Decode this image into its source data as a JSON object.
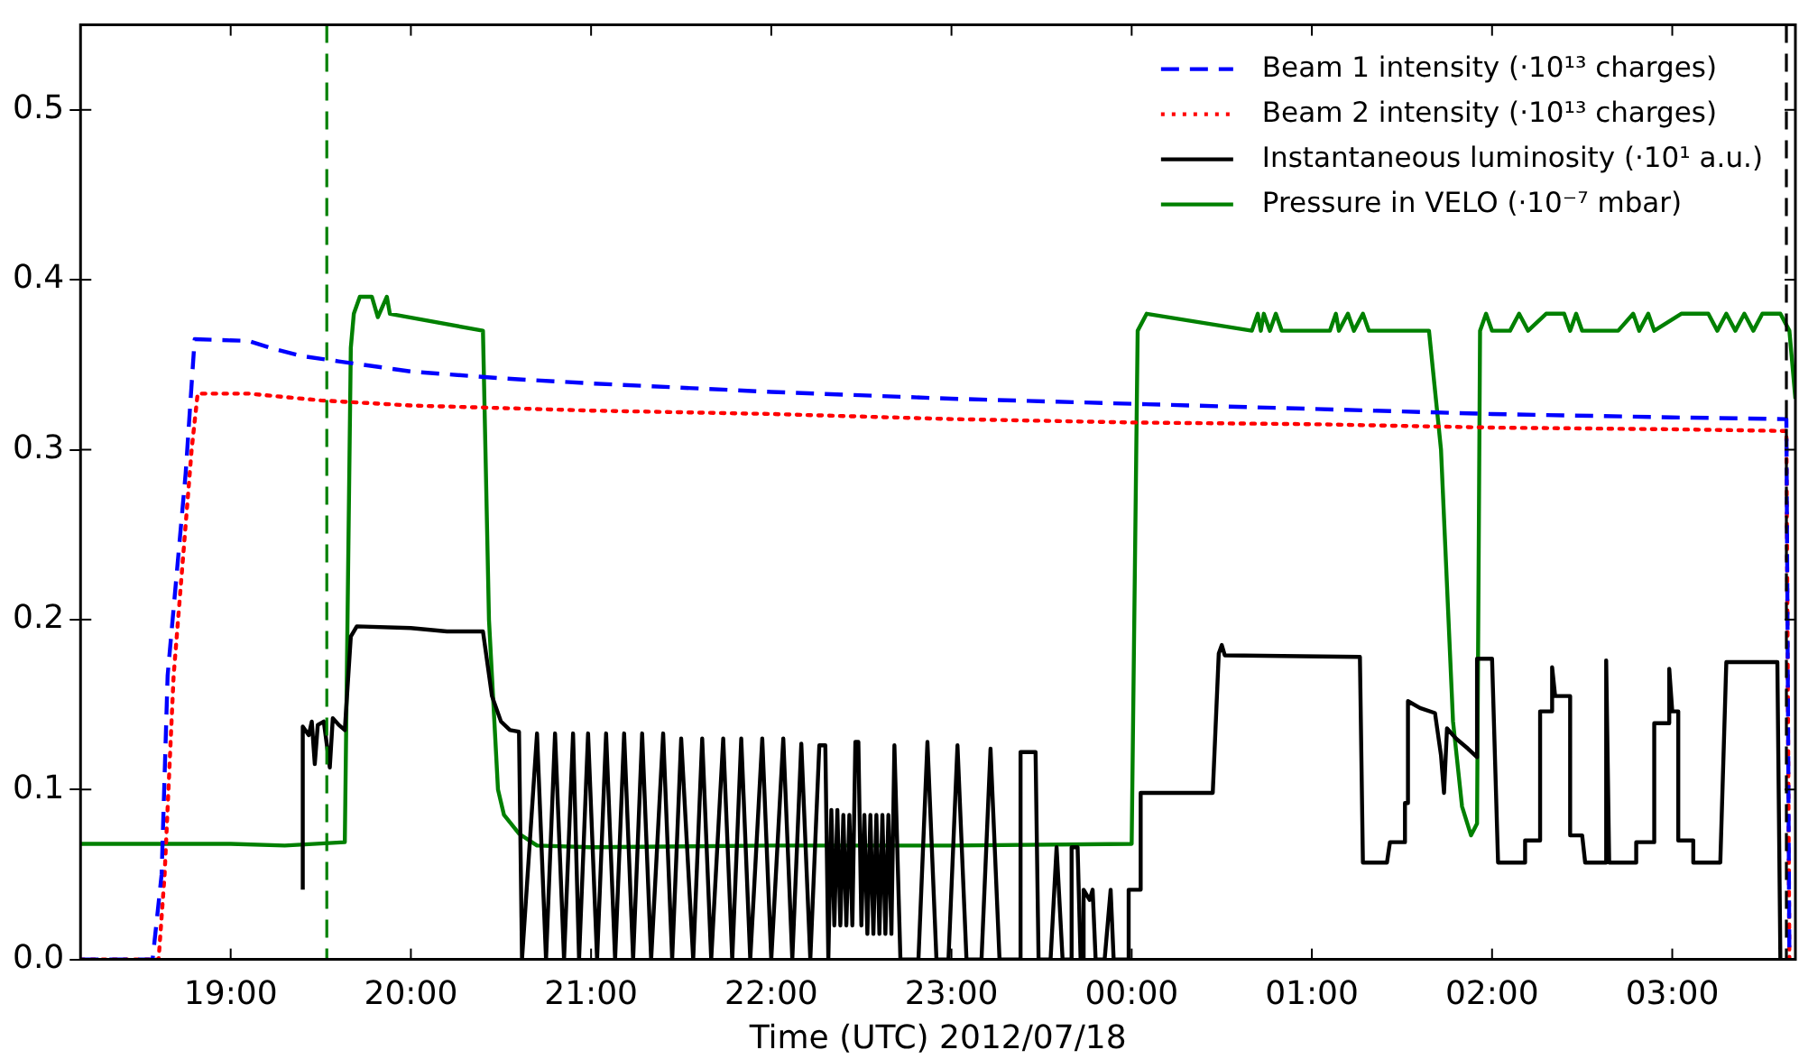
{
  "chart_data": {
    "type": "line",
    "xlabel": "Time (UTC) 2012/07/18",
    "xlim": [
      "2012-07-18T18:10",
      "2012-07-19T03:41"
    ],
    "ylim": [
      0,
      0.55
    ],
    "xticks": [
      {
        "value": "2012-07-18T19:00",
        "label": "19:00"
      },
      {
        "value": "2012-07-18T20:00",
        "label": "20:00"
      },
      {
        "value": "2012-07-18T21:00",
        "label": "21:00"
      },
      {
        "value": "2012-07-18T22:00",
        "label": "22:00"
      },
      {
        "value": "2012-07-18T23:00",
        "label": "23:00"
      },
      {
        "value": "2012-07-19T00:00",
        "label": "00:00"
      },
      {
        "value": "2012-07-19T01:00",
        "label": "01:00"
      },
      {
        "value": "2012-07-19T02:00",
        "label": "02:00"
      },
      {
        "value": "2012-07-19T03:00",
        "label": "03:00"
      }
    ],
    "yticks": [
      {
        "value": 0,
        "label": "0.0"
      },
      0.1,
      0.2,
      0.3,
      0.4,
      0.5
    ],
    "grid": false,
    "legend": "top right",
    "marker": "none",
    "ref_lines": [
      {
        "axis": "x",
        "value": "2012-07-18T19:32",
        "color": "#008000",
        "line_style": "dashed"
      },
      {
        "axis": "x",
        "value": "2012-07-19T03:38",
        "color": "#000000",
        "line_style": "dashed"
      }
    ],
    "series": [
      {
        "name": "Beam 1 intensity (·10¹³ charges)",
        "color": "#0000ff",
        "line_style": "dashed",
        "x": [
          "2012-07-18T18:10",
          "2012-07-18T18:34",
          "2012-07-18T18:37",
          "2012-07-18T18:39",
          "2012-07-18T18:45",
          "2012-07-18T18:48",
          "2012-07-18T19:06",
          "2012-07-18T19:13",
          "2012-07-18T19:24",
          "2012-07-18T19:36",
          "2012-07-18T20:00",
          "2012-07-18T20:30",
          "2012-07-18T21:00",
          "2012-07-18T22:00",
          "2012-07-18T23:00",
          "2012-07-19T00:00",
          "2012-07-19T01:00",
          "2012-07-19T02:00",
          "2012-07-19T03:00",
          "2012-07-19T03:38",
          "2012-07-19T03:39"
        ],
        "values": [
          0,
          0,
          0.05,
          0.167,
          0.286,
          0.365,
          0.364,
          0.36,
          0.355,
          0.352,
          0.346,
          0.342,
          0.339,
          0.334,
          0.33,
          0.327,
          0.324,
          0.321,
          0.319,
          0.318,
          0
        ]
      },
      {
        "name": "Beam 2 intensity (·10¹³ charges)",
        "color": "#ff0000",
        "line_style": "dotted",
        "x": [
          "2012-07-18T18:10",
          "2012-07-18T18:36",
          "2012-07-18T18:38",
          "2012-07-18T18:41",
          "2012-07-18T18:47",
          "2012-07-18T18:49",
          "2012-07-18T19:06",
          "2012-07-18T19:30",
          "2012-07-18T20:00",
          "2012-07-18T21:00",
          "2012-07-18T22:00",
          "2012-07-18T23:00",
          "2012-07-19T00:00",
          "2012-07-19T01:00",
          "2012-07-19T02:00",
          "2012-07-19T03:00",
          "2012-07-19T03:38",
          "2012-07-19T03:39"
        ],
        "values": [
          0,
          0,
          0.05,
          0.167,
          0.3,
          0.333,
          0.333,
          0.329,
          0.326,
          0.323,
          0.321,
          0.318,
          0.316,
          0.315,
          0.313,
          0.312,
          0.311,
          0
        ]
      },
      {
        "name": "Instantaneous luminosity (·10¹ a.u.)",
        "color": "#000000",
        "line_style": "solid",
        "x": [
          "2012-07-18T19:24",
          "2012-07-18T19:24",
          "2012-07-18T19:26",
          "2012-07-18T19:27",
          "2012-07-18T19:28",
          "2012-07-18T19:29",
          "2012-07-18T19:31",
          "2012-07-18T19:33",
          "2012-07-18T19:34",
          "2012-07-18T19:36",
          "2012-07-18T19:38",
          "2012-07-18T19:40",
          "2012-07-18T19:42",
          "2012-07-18T20:00",
          "2012-07-18T20:12",
          "2012-07-18T20:24",
          "2012-07-18T20:27",
          "2012-07-18T20:30",
          "2012-07-18T20:33",
          "2012-07-18T20:36",
          "2012-07-18T20:37",
          "2012-07-18T20:42",
          "2012-07-18T20:45",
          "2012-07-18T20:48",
          "2012-07-18T20:51",
          "2012-07-18T20:54",
          "2012-07-18T20:56",
          "2012-07-18T20:59",
          "2012-07-18T21:02",
          "2012-07-18T21:05",
          "2012-07-18T21:08",
          "2012-07-18T21:11",
          "2012-07-18T21:14",
          "2012-07-18T21:17",
          "2012-07-18T21:20",
          "2012-07-18T21:24",
          "2012-07-18T21:27",
          "2012-07-18T21:30",
          "2012-07-18T21:34",
          "2012-07-18T21:37",
          "2012-07-18T21:40",
          "2012-07-18T21:44",
          "2012-07-18T21:47",
          "2012-07-18T21:50",
          "2012-07-18T21:53",
          "2012-07-18T21:57",
          "2012-07-18T22:00",
          "2012-07-18T22:04",
          "2012-07-18T22:07",
          "2012-07-18T22:10",
          "2012-07-18T22:13",
          "2012-07-18T22:16",
          "2012-07-18T22:18",
          "2012-07-18T22:19",
          "2012-07-18T22:20",
          "2012-07-18T22:21",
          "2012-07-18T22:22",
          "2012-07-18T22:23",
          "2012-07-18T22:24",
          "2012-07-18T22:25",
          "2012-07-18T22:26",
          "2012-07-18T22:27",
          "2012-07-18T22:28",
          "2012-07-18T22:29",
          "2012-07-18T22:30",
          "2012-07-18T22:31",
          "2012-07-18T22:32",
          "2012-07-18T22:33",
          "2012-07-18T22:34",
          "2012-07-18T22:35",
          "2012-07-18T22:36",
          "2012-07-18T22:37",
          "2012-07-18T22:38",
          "2012-07-18T22:39",
          "2012-07-18T22:40",
          "2012-07-18T22:41",
          "2012-07-18T22:43",
          "2012-07-18T22:49",
          "2012-07-18T22:52",
          "2012-07-18T22:55",
          "2012-07-18T22:59",
          "2012-07-18T23:02",
          "2012-07-18T23:05",
          "2012-07-18T23:10",
          "2012-07-18T23:13",
          "2012-07-18T23:16",
          "2012-07-18T23:23",
          "2012-07-18T23:23",
          "2012-07-18T23:28",
          "2012-07-18T23:29",
          "2012-07-18T23:33",
          "2012-07-18T23:35",
          "2012-07-18T23:37",
          "2012-07-18T23:40",
          "2012-07-18T23:40",
          "2012-07-18T23:42",
          "2012-07-18T23:43",
          "2012-07-18T23:44",
          "2012-07-18T23:44",
          "2012-07-18T23:46",
          "2012-07-18T23:47",
          "2012-07-18T23:48",
          "2012-07-18T23:51",
          "2012-07-18T23:53",
          "2012-07-18T23:54",
          "2012-07-18T23:59",
          "2012-07-18T23:59",
          "2012-07-19T00:03",
          "2012-07-19T00:03",
          "2012-07-19T00:27",
          "2012-07-19T00:29",
          "2012-07-19T00:30",
          "2012-07-19T00:31",
          "2012-07-19T01:16",
          "2012-07-19T01:17",
          "2012-07-19T01:25",
          "2012-07-19T01:26",
          "2012-07-19T01:31",
          "2012-07-19T01:31",
          "2012-07-19T01:32",
          "2012-07-19T01:32",
          "2012-07-19T01:36",
          "2012-07-19T01:41",
          "2012-07-19T01:43",
          "2012-07-19T01:44",
          "2012-07-19T01:45",
          "2012-07-19T01:48",
          "2012-07-19T01:52",
          "2012-07-19T01:55",
          "2012-07-19T01:55",
          "2012-07-19T02:00",
          "2012-07-19T02:02",
          "2012-07-19T02:11",
          "2012-07-19T02:11",
          "2012-07-19T02:16",
          "2012-07-19T02:16",
          "2012-07-19T02:20",
          "2012-07-19T02:20",
          "2012-07-19T02:21",
          "2012-07-19T02:26",
          "2012-07-19T02:26",
          "2012-07-19T02:30",
          "2012-07-19T02:31",
          "2012-07-19T02:38",
          "2012-07-19T02:38",
          "2012-07-19T02:39",
          "2012-07-19T02:48",
          "2012-07-19T02:48",
          "2012-07-19T02:54",
          "2012-07-19T02:54",
          "2012-07-19T02:59",
          "2012-07-19T02:59",
          "2012-07-19T03:00",
          "2012-07-19T03:02",
          "2012-07-19T03:02",
          "2012-07-19T03:07",
          "2012-07-19T03:07",
          "2012-07-19T03:16",
          "2012-07-19T03:18",
          "2012-07-19T03:35",
          "2012-07-19T03:36"
        ],
        "values": [
          0.041,
          0.137,
          0.132,
          0.14,
          0.115,
          0.138,
          0.14,
          0.113,
          0.142,
          0.138,
          0.135,
          0.19,
          0.196,
          0.195,
          0.193,
          0.193,
          0.155,
          0.14,
          0.135,
          0.134,
          0,
          0.133,
          0,
          0.133,
          0,
          0.133,
          0,
          0.133,
          0,
          0.133,
          0,
          0.133,
          0,
          0.133,
          0,
          0.133,
          0,
          0.13,
          0,
          0.13,
          0,
          0.13,
          0,
          0.13,
          0,
          0.13,
          0,
          0.13,
          0,
          0.127,
          0,
          0.126,
          0.126,
          0,
          0.088,
          0.02,
          0.088,
          0.02,
          0.085,
          0.02,
          0.085,
          0.02,
          0.128,
          0.128,
          0.02,
          0.085,
          0.015,
          0.085,
          0.015,
          0.085,
          0.015,
          0.085,
          0.015,
          0.085,
          0.015,
          0.126,
          0,
          0,
          0.128,
          0,
          0,
          0.126,
          0,
          0,
          0.124,
          0,
          0,
          0.122,
          0.122,
          0,
          0,
          0.066,
          0,
          0,
          0.066,
          0.066,
          0,
          0,
          0.041,
          0.035,
          0.041,
          0,
          0,
          0.041,
          0,
          0,
          0.041,
          0.041,
          0.098,
          0.098,
          0.18,
          0.185,
          0.179,
          0.178,
          0.057,
          0.057,
          0.069,
          0.069,
          0.092,
          0.092,
          0.152,
          0.148,
          0.145,
          0.12,
          0.098,
          0.136,
          0.13,
          0.124,
          0.119,
          0.177,
          0.177,
          0.057,
          0.057,
          0.07,
          0.07,
          0.146,
          0.146,
          0.172,
          0.155,
          0.155,
          0.073,
          0.073,
          0.057,
          0.057,
          0.176,
          0.057,
          0.057,
          0.069,
          0.069,
          0.139,
          0.139,
          0.171,
          0.146,
          0.146,
          0.07,
          0.07,
          0.057,
          0.057,
          0.175,
          0.175,
          0
        ]
      },
      {
        "name": "Pressure in VELO (·10⁻⁷ mbar)",
        "color": "#008000",
        "line_style": "solid",
        "x": [
          "2012-07-18T18:10",
          "2012-07-18T19:00",
          "2012-07-18T19:18",
          "2012-07-18T19:38",
          "2012-07-18T19:40",
          "2012-07-18T19:41",
          "2012-07-18T19:43",
          "2012-07-18T19:47",
          "2012-07-18T19:49",
          "2012-07-18T19:52",
          "2012-07-18T19:53",
          "2012-07-18T20:24",
          "2012-07-18T20:26",
          "2012-07-18T20:29",
          "2012-07-18T20:31",
          "2012-07-18T20:36",
          "2012-07-18T20:42",
          "2012-07-18T21:00",
          "2012-07-18T22:00",
          "2012-07-18T23:00",
          "2012-07-19T00:00",
          "2012-07-19T00:02",
          "2012-07-19T00:05",
          "2012-07-19T00:40",
          "2012-07-19T00:42",
          "2012-07-19T00:43",
          "2012-07-19T00:44",
          "2012-07-19T00:46",
          "2012-07-19T00:48",
          "2012-07-19T00:50",
          "2012-07-19T01:06",
          "2012-07-19T01:08",
          "2012-07-19T01:09",
          "2012-07-19T01:12",
          "2012-07-19T01:14",
          "2012-07-19T01:17",
          "2012-07-19T01:19",
          "2012-07-19T01:39",
          "2012-07-19T01:43",
          "2012-07-19T01:47",
          "2012-07-19T01:50",
          "2012-07-19T01:53",
          "2012-07-19T01:55",
          "2012-07-19T01:56",
          "2012-07-19T01:58",
          "2012-07-19T02:00",
          "2012-07-19T02:06",
          "2012-07-19T02:09",
          "2012-07-19T02:12",
          "2012-07-19T02:18",
          "2012-07-19T02:24",
          "2012-07-19T02:26",
          "2012-07-19T02:28",
          "2012-07-19T02:30",
          "2012-07-19T02:42",
          "2012-07-19T02:47",
          "2012-07-19T02:49",
          "2012-07-19T02:52",
          "2012-07-19T02:54",
          "2012-07-19T03:03",
          "2012-07-19T03:12",
          "2012-07-19T03:15",
          "2012-07-19T03:18",
          "2012-07-19T03:21",
          "2012-07-19T03:24",
          "2012-07-19T03:27",
          "2012-07-19T03:30",
          "2012-07-19T03:36",
          "2012-07-19T03:39",
          "2012-07-19T03:41"
        ],
        "values": [
          0.068,
          0.068,
          0.067,
          0.069,
          0.36,
          0.38,
          0.39,
          0.39,
          0.378,
          0.39,
          0.38,
          0.37,
          0.2,
          0.1,
          0.085,
          0.074,
          0.067,
          0.066,
          0.067,
          0.067,
          0.068,
          0.37,
          0.38,
          0.37,
          0.38,
          0.37,
          0.38,
          0.37,
          0.38,
          0.37,
          0.37,
          0.38,
          0.37,
          0.38,
          0.37,
          0.38,
          0.37,
          0.37,
          0.3,
          0.14,
          0.09,
          0.073,
          0.08,
          0.37,
          0.38,
          0.37,
          0.37,
          0.38,
          0.37,
          0.38,
          0.38,
          0.37,
          0.38,
          0.37,
          0.37,
          0.38,
          0.37,
          0.38,
          0.37,
          0.38,
          0.38,
          0.37,
          0.38,
          0.37,
          0.38,
          0.37,
          0.38,
          0.38,
          0.37,
          0.33
        ]
      }
    ]
  }
}
